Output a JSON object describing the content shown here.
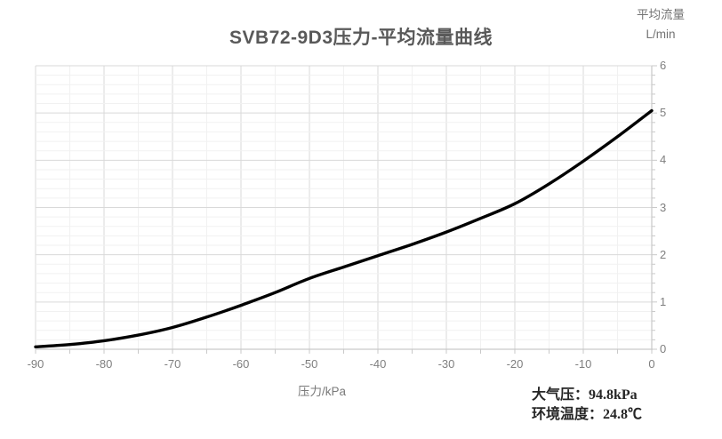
{
  "title": "SVB72-9D3压力-平均流量曲线",
  "y_axis_title_line1": "平均流量",
  "y_axis_title_line2": "L/min",
  "x_axis_title": "压力/kPa",
  "annotation": {
    "line1": "大气压：94.8kPa",
    "line2": "环境温度：24.8℃"
  },
  "chart_data": {
    "type": "line",
    "title": "SVB72-9D3压力-平均流量曲线",
    "xlabel": "压力/kPa",
    "ylabel": "平均流量 L/min",
    "x": [
      -90,
      -85,
      -80,
      -75,
      -70,
      -65,
      -60,
      -55,
      -50,
      -45,
      -40,
      -35,
      -30,
      -25,
      -20,
      -15,
      -10,
      -5,
      0
    ],
    "y": [
      0.05,
      0.1,
      0.18,
      0.3,
      0.46,
      0.68,
      0.93,
      1.2,
      1.5,
      1.74,
      1.98,
      2.22,
      2.48,
      2.77,
      3.08,
      3.5,
      3.98,
      4.5,
      5.05
    ],
    "xlim": [
      -90,
      0
    ],
    "ylim": [
      0,
      6
    ],
    "x_major_step": 10,
    "x_minor_step": 5,
    "y_major_step": 1,
    "y_minor_step": 0.2,
    "x_tick_labels": [
      "-90",
      "-80",
      "-70",
      "-60",
      "-50",
      "-40",
      "-30",
      "-20",
      "-10",
      "0"
    ],
    "y_tick_labels": [
      "0",
      "1",
      "2",
      "3",
      "4",
      "5",
      "6"
    ],
    "grid": true,
    "legend": "none",
    "colors": {
      "line": "#000000",
      "grid_major": "#d9d9d9",
      "grid_minor": "#f1f1f1",
      "axis": "#c9c9c9",
      "tick_label": "#7f7f7f",
      "title": "#595959",
      "annotation": "#262626"
    }
  }
}
